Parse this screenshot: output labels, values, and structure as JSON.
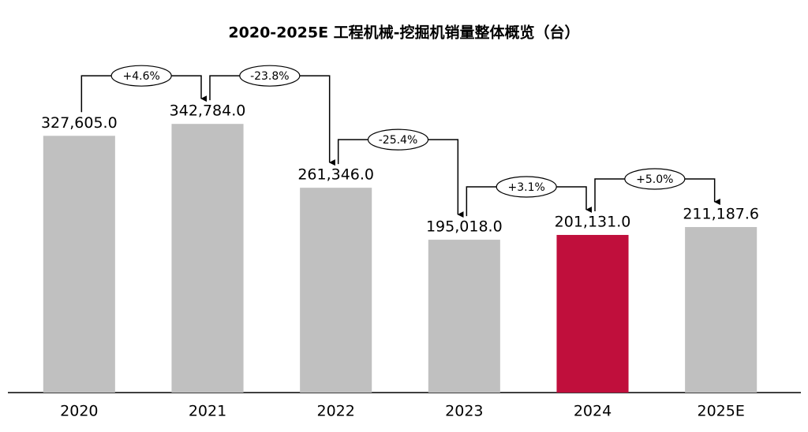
{
  "chart_data": {
    "type": "bar",
    "title": "2020-2025E 工程机械-挖掘机销量整体概览（台）",
    "categories": [
      "2020",
      "2021",
      "2022",
      "2023",
      "2024",
      "2025E"
    ],
    "values": [
      327605.0,
      342784.0,
      261346.0,
      195018.0,
      201131.0,
      211187.6
    ],
    "value_labels": [
      "327,605.0",
      "342,784.0",
      "261,346.0",
      "195,018.0",
      "201,131.0",
      "211,187.6"
    ],
    "colors": [
      "#c0c0c0",
      "#c0c0c0",
      "#c0c0c0",
      "#c0c0c0",
      "#c00f3c",
      "#c0c0c0"
    ],
    "growth_labels": [
      "+4.6%",
      "-23.8%",
      "-25.4%",
      "+3.1%",
      "+5.0%"
    ],
    "ylim": [
      0,
      350000
    ]
  }
}
